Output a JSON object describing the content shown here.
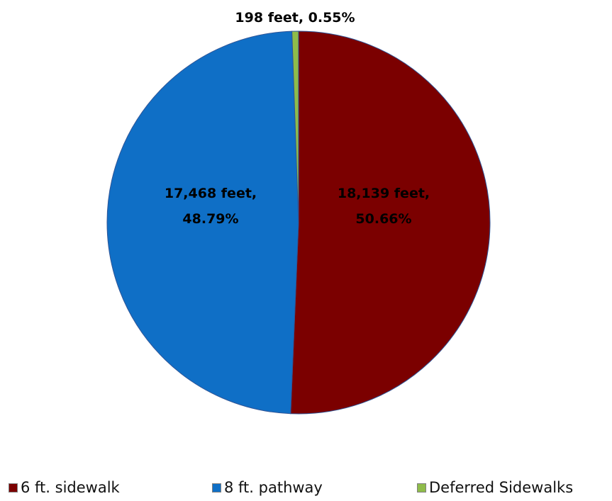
{
  "chart_data": {
    "type": "pie",
    "title": "",
    "slices": [
      {
        "label": "6 ft. sidewalk",
        "value": 18139,
        "percent": 50.66,
        "color": "#7b0000",
        "data_label_lines": [
          "18,139 feet,",
          "50.66%"
        ]
      },
      {
        "label": "8 ft. pathway",
        "value": 17468,
        "percent": 48.79,
        "color": "#0f6fc6",
        "data_label_lines": [
          "17,468 feet,",
          "48.79%"
        ]
      },
      {
        "label": "Deferred Sidewalks",
        "value": 198,
        "percent": 0.55,
        "color": "#8fbc4a",
        "data_label_lines": [
          "198 feet, 0.55%"
        ]
      }
    ],
    "legend_position": "bottom"
  }
}
